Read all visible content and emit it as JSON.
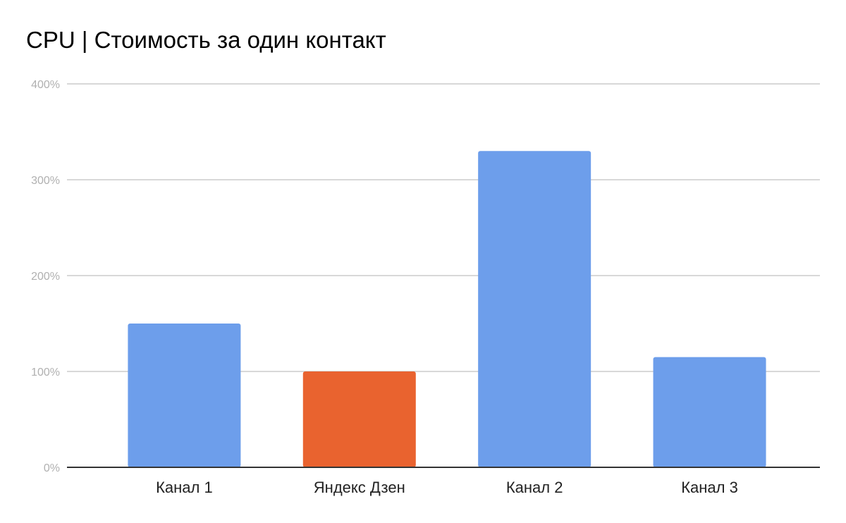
{
  "chart_data": {
    "type": "bar",
    "title": "CPU | Стоимость за один контакт",
    "xlabel": "",
    "ylabel": "",
    "categories": [
      "Канал 1",
      "Яндекс Дзен",
      "Канал 2",
      "Канал 3"
    ],
    "values": [
      150,
      100,
      330,
      115
    ],
    "value_unit": "%",
    "ylim": [
      0,
      400
    ],
    "yticks": [
      0,
      100,
      200,
      300,
      400
    ],
    "ytick_labels": [
      "0%",
      "100%",
      "200%",
      "300%",
      "400%"
    ],
    "grid": true,
    "legend": "none",
    "colors": {
      "default": "#6d9eeb",
      "highlight": "#e9632f",
      "grid": "#cccccc",
      "axis": "#333333"
    },
    "highlighted_category": "Яндекс Дзен"
  }
}
